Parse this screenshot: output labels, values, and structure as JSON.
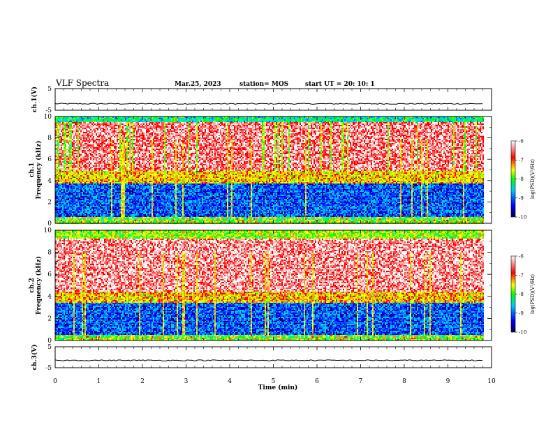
{
  "header": {
    "title": "VLF Spectra",
    "date": "Mar.25, 2023",
    "station": "station= MOS",
    "start": "start  UT =   20: 10: 1"
  },
  "chart_data": [
    {
      "type": "line",
      "name": "ch1-voltage",
      "ylabel": "ch.1(V)",
      "ylim": [
        -5,
        5
      ],
      "yticks": [
        "5",
        "-5"
      ],
      "xlim": [
        0,
        10
      ],
      "approx_level": -2.0
    },
    {
      "type": "heatmap",
      "name": "ch1-spectrogram",
      "ylabel": "ch.1\nFrequency (kHz)",
      "ylabel_lines": [
        "ch.1",
        "Frequency (kHz)"
      ],
      "ylim": [
        0,
        10
      ],
      "yticks": [
        "0",
        "2",
        "4",
        "6",
        "8",
        "10"
      ],
      "xlim": [
        0,
        10
      ],
      "data_end_min": 9.8,
      "colorbar": {
        "label": "log(PSD)(V²/Hz)",
        "range": [
          -10,
          -6
        ],
        "ticks": [
          "-6",
          "-7",
          "-8",
          "-9",
          "-10"
        ]
      }
    },
    {
      "type": "heatmap",
      "name": "ch2-spectrogram",
      "ylabel": "ch.2\nFrequency (kHz)",
      "ylabel_lines": [
        "ch.2",
        "Frequency (kHz)"
      ],
      "ylim": [
        0,
        10
      ],
      "yticks": [
        "0",
        "2",
        "4",
        "6",
        "8",
        "10"
      ],
      "xlim": [
        0,
        10
      ],
      "data_end_min": 9.8,
      "colorbar": {
        "label": "log(PSD)(V²/Hz)",
        "range": [
          -10,
          -6
        ],
        "ticks": [
          "-6",
          "-7",
          "-8",
          "-9",
          "-10"
        ]
      }
    },
    {
      "type": "line",
      "name": "ch3-voltage",
      "ylabel": "ch.3(V)",
      "ylim": [
        -5,
        5
      ],
      "yticks": [
        "5",
        "-5"
      ],
      "xlim": [
        0,
        10
      ],
      "approx_level": -1.5
    }
  ],
  "xaxis": {
    "label": "Time (min)",
    "ticks": [
      "0",
      "1",
      "2",
      "3",
      "4",
      "5",
      "6",
      "7",
      "8",
      "9",
      "10"
    ]
  },
  "colors": {
    "colormap": [
      "#00005a",
      "#0000ff",
      "#00c8ff",
      "#00ff00",
      "#ffff00",
      "#ff0000",
      "#ffffff"
    ]
  }
}
